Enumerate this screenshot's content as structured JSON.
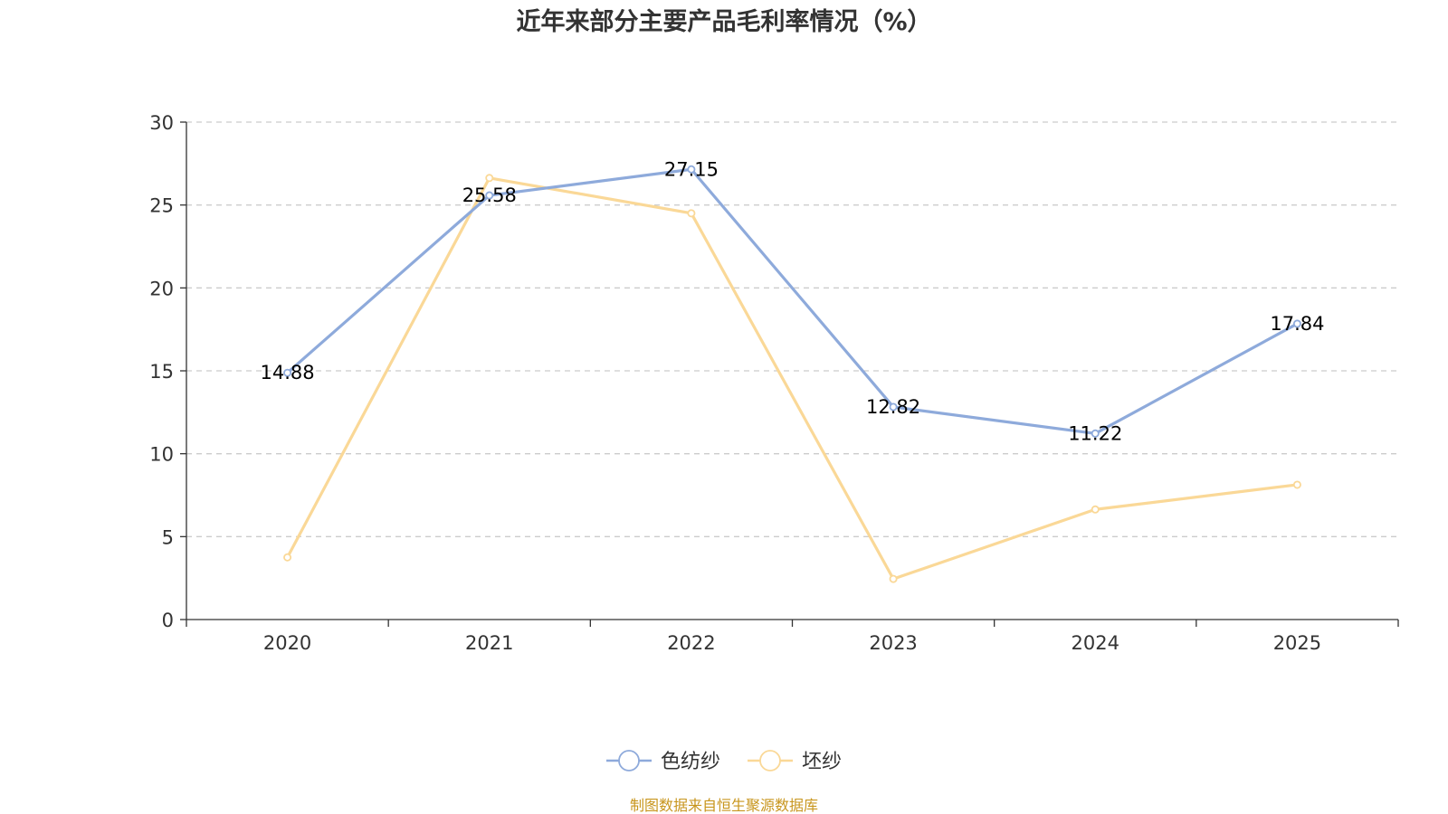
{
  "chart_data": {
    "type": "line",
    "title": "近年来部分主要产品毛利率情况（%）",
    "categories": [
      "2020",
      "2021",
      "2022",
      "2023",
      "2024",
      "2025"
    ],
    "ylim": [
      0,
      30
    ],
    "yticks": [
      0,
      5,
      10,
      15,
      20,
      25,
      30
    ],
    "grid": true,
    "legend_position": "bottom-center",
    "series": [
      {
        "name": "色纺纱",
        "color": "#8eaadb",
        "values": [
          14.88,
          25.58,
          27.15,
          12.82,
          11.22,
          17.84
        ],
        "data_labels": [
          "14.88",
          "25.58",
          "27.15",
          "12.82",
          "11.22",
          "17.84"
        ]
      },
      {
        "name": "坯纱",
        "color": "#fad897",
        "values": [
          3.75,
          26.63,
          24.5,
          2.45,
          6.64,
          8.13
        ],
        "data_labels": []
      }
    ]
  },
  "footer": {
    "source_text": "制图数据来自恒生聚源数据库",
    "source_color": "#c8961e"
  }
}
